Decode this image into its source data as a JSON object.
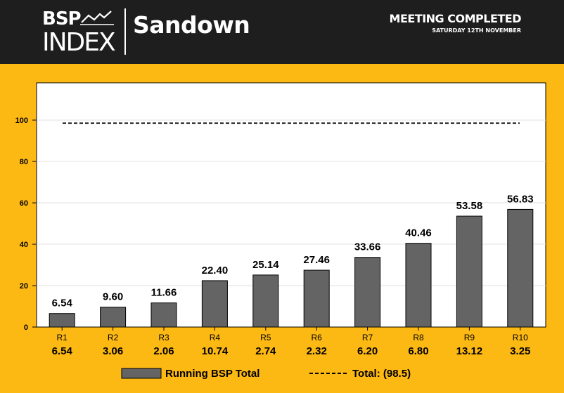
{
  "header": {
    "logo_line1": "BSP",
    "logo_line2": "INDEX",
    "venue": "Sandown",
    "status": "MEETING COMPLETED",
    "date": "SATURDAY 12TH NOVEMBER"
  },
  "colors": {
    "header_bg": "#1e1e1e",
    "page_bg": "#fdb913",
    "plot_bg": "#ffffff",
    "bar_fill": "#646464",
    "bar_stroke": "#000000"
  },
  "chart_data": {
    "type": "bar",
    "categories": [
      "R1",
      "R2",
      "R3",
      "R4",
      "R5",
      "R6",
      "R7",
      "R8",
      "R9",
      "R10"
    ],
    "race_values": [
      "6.54",
      "3.06",
      "2.06",
      "10.74",
      "2.74",
      "2.32",
      "6.20",
      "6.80",
      "13.12",
      "3.25"
    ],
    "series": [
      {
        "name": "Running BSP Total",
        "values": [
          6.54,
          9.6,
          11.66,
          22.4,
          25.14,
          27.46,
          33.66,
          40.46,
          53.58,
          56.83
        ]
      }
    ],
    "value_labels": [
      "6.54",
      "9.60",
      "11.66",
      "22.40",
      "25.14",
      "27.46",
      "33.66",
      "40.46",
      "53.58",
      "56.83"
    ],
    "reference_line": {
      "label": "Total: (98.5)",
      "value": 98.5,
      "style": "dashed"
    },
    "ylim": [
      0,
      118
    ],
    "yticks": [
      0,
      20,
      40,
      60,
      80,
      100
    ],
    "grid": true,
    "legend_position": "bottom-center"
  }
}
